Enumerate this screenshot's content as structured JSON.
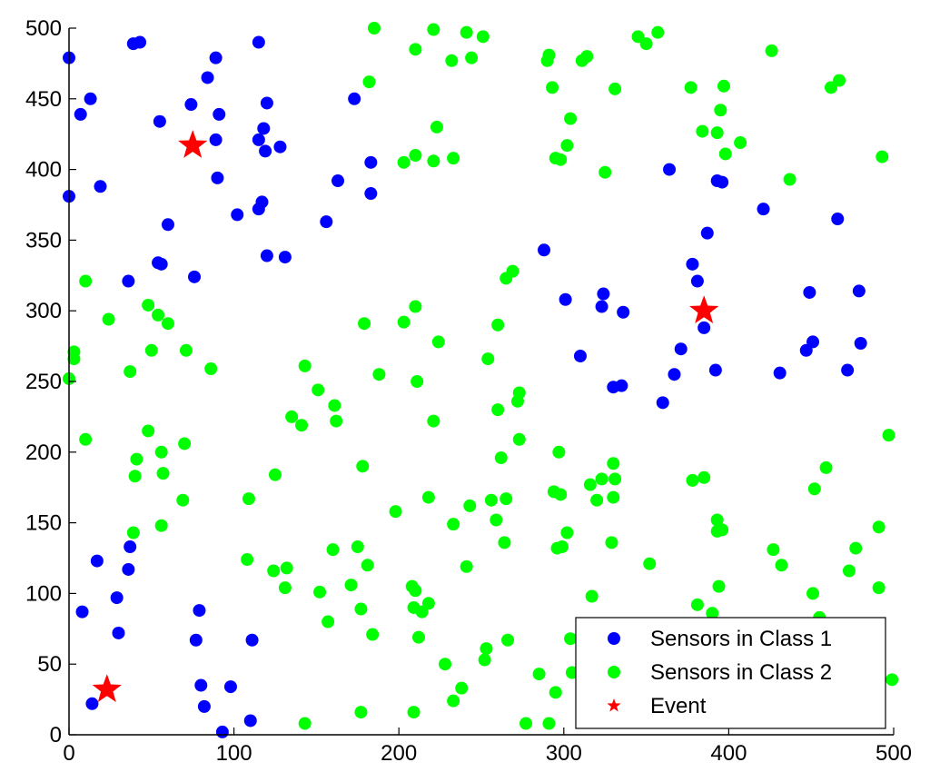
{
  "chart_data": {
    "type": "scatter",
    "title": "",
    "xlabel": "",
    "ylabel": "",
    "xlim": [
      0,
      500
    ],
    "ylim": [
      0,
      500
    ],
    "xticks": [
      0,
      100,
      200,
      300,
      400,
      500
    ],
    "yticks": [
      0,
      50,
      100,
      150,
      200,
      250,
      300,
      350,
      400,
      450,
      500
    ],
    "grid": false,
    "legend_position": "bottom-right",
    "series": [
      {
        "name": "Sensors in Class 1",
        "color": "#0000ff",
        "marker": "circle",
        "points": [
          [
            0,
            479
          ],
          [
            7,
            439
          ],
          [
            13,
            450
          ],
          [
            19,
            388
          ],
          [
            0,
            381
          ],
          [
            39,
            489
          ],
          [
            43,
            490
          ],
          [
            55,
            434
          ],
          [
            89,
            479
          ],
          [
            84,
            465
          ],
          [
            74,
            446
          ],
          [
            91,
            439
          ],
          [
            89,
            421
          ],
          [
            90,
            394
          ],
          [
            115,
            490
          ],
          [
            120,
            447
          ],
          [
            118,
            429
          ],
          [
            115,
            421
          ],
          [
            119,
            413
          ],
          [
            128,
            416
          ],
          [
            117,
            377
          ],
          [
            115,
            372
          ],
          [
            102,
            368
          ],
          [
            173,
            450
          ],
          [
            163,
            392
          ],
          [
            156,
            363
          ],
          [
            183,
            405
          ],
          [
            183,
            383
          ],
          [
            60,
            361
          ],
          [
            54,
            334
          ],
          [
            56,
            333
          ],
          [
            36,
            321
          ],
          [
            76,
            324
          ],
          [
            120,
            339
          ],
          [
            131,
            338
          ],
          [
            17,
            123
          ],
          [
            37,
            133
          ],
          [
            36,
            117
          ],
          [
            29,
            97
          ],
          [
            8,
            87
          ],
          [
            30,
            72
          ],
          [
            14,
            22
          ],
          [
            77,
            67
          ],
          [
            79,
            88
          ],
          [
            80,
            35
          ],
          [
            82,
            20
          ],
          [
            98,
            34
          ],
          [
            93,
            2
          ],
          [
            111,
            67
          ],
          [
            110,
            10
          ],
          [
            288,
            343
          ],
          [
            364,
            400
          ],
          [
            393,
            392
          ],
          [
            396,
            391
          ],
          [
            387,
            355
          ],
          [
            421,
            372
          ],
          [
            466,
            365
          ],
          [
            378,
            333
          ],
          [
            381,
            321
          ],
          [
            301,
            308
          ],
          [
            324,
            312
          ],
          [
            323,
            303
          ],
          [
            336,
            299
          ],
          [
            385,
            288
          ],
          [
            371,
            273
          ],
          [
            310,
            268
          ],
          [
            392,
            258
          ],
          [
            367,
            255
          ],
          [
            360,
            235
          ],
          [
            330,
            246
          ],
          [
            335,
            247
          ],
          [
            449,
            313
          ],
          [
            479,
            314
          ],
          [
            451,
            278
          ],
          [
            447,
            272
          ],
          [
            480,
            277
          ],
          [
            431,
            256
          ],
          [
            472,
            258
          ]
        ]
      },
      {
        "name": "Sensors in Class 2",
        "color": "#00ff00",
        "marker": "circle",
        "points": [
          [
            185,
            500
          ],
          [
            221,
            499
          ],
          [
            241,
            497
          ],
          [
            251,
            494
          ],
          [
            210,
            485
          ],
          [
            232,
            477
          ],
          [
            244,
            479
          ],
          [
            182,
            462
          ],
          [
            291,
            481
          ],
          [
            290,
            477
          ],
          [
            293,
            458
          ],
          [
            314,
            480
          ],
          [
            311,
            477
          ],
          [
            345,
            494
          ],
          [
            350,
            489
          ],
          [
            357,
            497
          ],
          [
            331,
            457
          ],
          [
            304,
            436
          ],
          [
            302,
            417
          ],
          [
            298,
            407
          ],
          [
            295,
            408
          ],
          [
            325,
            398
          ],
          [
            377,
            458
          ],
          [
            397,
            459
          ],
          [
            395,
            442
          ],
          [
            384,
            427
          ],
          [
            393,
            426
          ],
          [
            398,
            411
          ],
          [
            407,
            419
          ],
          [
            426,
            484
          ],
          [
            467,
            463
          ],
          [
            462,
            458
          ],
          [
            437,
            393
          ],
          [
            493,
            409
          ],
          [
            223,
            430
          ],
          [
            221,
            406
          ],
          [
            233,
            408
          ],
          [
            210,
            410
          ],
          [
            203,
            405
          ],
          [
            10,
            321
          ],
          [
            3,
            271
          ],
          [
            3,
            266
          ],
          [
            0,
            252
          ],
          [
            24,
            294
          ],
          [
            48,
            304
          ],
          [
            54,
            297
          ],
          [
            60,
            291
          ],
          [
            50,
            272
          ],
          [
            71,
            272
          ],
          [
            37,
            257
          ],
          [
            86,
            259
          ],
          [
            10,
            209
          ],
          [
            48,
            215
          ],
          [
            41,
            195
          ],
          [
            56,
            200
          ],
          [
            40,
            183
          ],
          [
            57,
            185
          ],
          [
            70,
            206
          ],
          [
            69,
            166
          ],
          [
            39,
            143
          ],
          [
            56,
            148
          ],
          [
            109,
            167
          ],
          [
            125,
            184
          ],
          [
            143,
            261
          ],
          [
            151,
            244
          ],
          [
            135,
            225
          ],
          [
            141,
            219
          ],
          [
            161,
            233
          ],
          [
            162,
            222
          ],
          [
            179,
            291
          ],
          [
            188,
            255
          ],
          [
            178,
            190
          ],
          [
            203,
            292
          ],
          [
            210,
            303
          ],
          [
            224,
            278
          ],
          [
            211,
            250
          ],
          [
            221,
            222
          ],
          [
            269,
            328
          ],
          [
            265,
            323
          ],
          [
            260,
            290
          ],
          [
            254,
            266
          ],
          [
            273,
            242
          ],
          [
            272,
            236
          ],
          [
            260,
            230
          ],
          [
            273,
            209
          ],
          [
            262,
            196
          ],
          [
            297,
            200
          ],
          [
            330,
            192
          ],
          [
            323,
            181
          ],
          [
            331,
            181
          ],
          [
            316,
            177
          ],
          [
            320,
            166
          ],
          [
            330,
            168
          ],
          [
            294,
            172
          ],
          [
            298,
            170
          ],
          [
            265,
            167
          ],
          [
            256,
            166
          ],
          [
            259,
            152
          ],
          [
            243,
            162
          ],
          [
            233,
            149
          ],
          [
            218,
            168
          ],
          [
            198,
            158
          ],
          [
            264,
            136
          ],
          [
            296,
            132
          ],
          [
            299,
            133
          ],
          [
            302,
            143
          ],
          [
            329,
            136
          ],
          [
            378,
            180
          ],
          [
            385,
            182
          ],
          [
            393,
            152
          ],
          [
            396,
            145
          ],
          [
            393,
            144
          ],
          [
            459,
            189
          ],
          [
            452,
            174
          ],
          [
            497,
            212
          ],
          [
            491,
            147
          ],
          [
            477,
            132
          ],
          [
            473,
            116
          ],
          [
            427,
            131
          ],
          [
            432,
            120
          ],
          [
            451,
            100
          ],
          [
            491,
            104
          ],
          [
            108,
            124
          ],
          [
            124,
            116
          ],
          [
            132,
            118
          ],
          [
            131,
            104
          ],
          [
            152,
            101
          ],
          [
            160,
            131
          ],
          [
            175,
            133
          ],
          [
            181,
            120
          ],
          [
            177,
            89
          ],
          [
            171,
            106
          ],
          [
            184,
            71
          ],
          [
            157,
            80
          ],
          [
            208,
            105
          ],
          [
            210,
            102
          ],
          [
            209,
            90
          ],
          [
            218,
            93
          ],
          [
            214,
            87
          ],
          [
            212,
            69
          ],
          [
            241,
            119
          ],
          [
            228,
            50
          ],
          [
            238,
            33
          ],
          [
            252,
            53
          ],
          [
            253,
            61
          ],
          [
            266,
            67
          ],
          [
            233,
            24
          ],
          [
            209,
            16
          ],
          [
            177,
            16
          ],
          [
            143,
            8
          ],
          [
            317,
            98
          ],
          [
            352,
            121
          ],
          [
            381,
            92
          ],
          [
            394,
            105
          ],
          [
            390,
            86
          ],
          [
            455,
            83
          ],
          [
            285,
            43
          ],
          [
            295,
            30
          ],
          [
            291,
            8
          ],
          [
            277,
            8
          ],
          [
            305,
            44
          ],
          [
            304,
            68
          ],
          [
            499,
            39
          ]
        ]
      },
      {
        "name": "Event",
        "color": "#ff0000",
        "marker": "star",
        "points": [
          [
            75,
            417
          ],
          [
            385,
            300
          ],
          [
            23,
            32
          ]
        ]
      }
    ]
  }
}
